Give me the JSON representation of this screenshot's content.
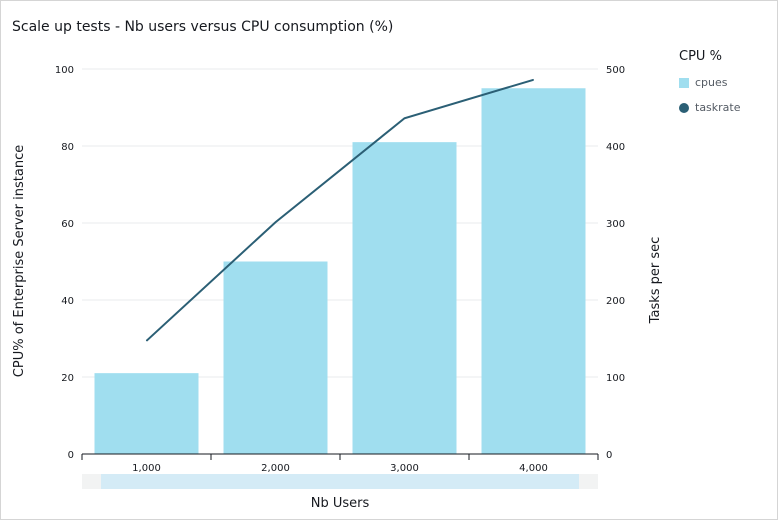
{
  "chart_data": {
    "type": "bar+line",
    "title": "Scale up tests - Nb users versus CPU consumption (%)",
    "xlabel": "Nb Users",
    "ylabel": "CPU% of Enterprise Server instance",
    "y2label": "Tasks per sec",
    "categories": [
      "1,000",
      "2,000",
      "3,000",
      "4,000"
    ],
    "ylim": [
      0,
      100
    ],
    "y2lim": [
      0,
      500
    ],
    "yticks": [
      "0",
      "20",
      "40",
      "60",
      "80",
      "100"
    ],
    "y2ticks": [
      "0",
      "100",
      "200",
      "300",
      "400",
      "500"
    ],
    "grid": true,
    "legend": {
      "title": "CPU %",
      "position": "right"
    },
    "series": [
      {
        "name": "cpues",
        "type": "bar",
        "axis": "left",
        "color": "#a0deef",
        "values": [
          21,
          50,
          81,
          95
        ]
      },
      {
        "name": "taskrate",
        "type": "line",
        "axis": "right",
        "color": "#2b5f75",
        "values": [
          147,
          301,
          436,
          486
        ]
      }
    ]
  }
}
